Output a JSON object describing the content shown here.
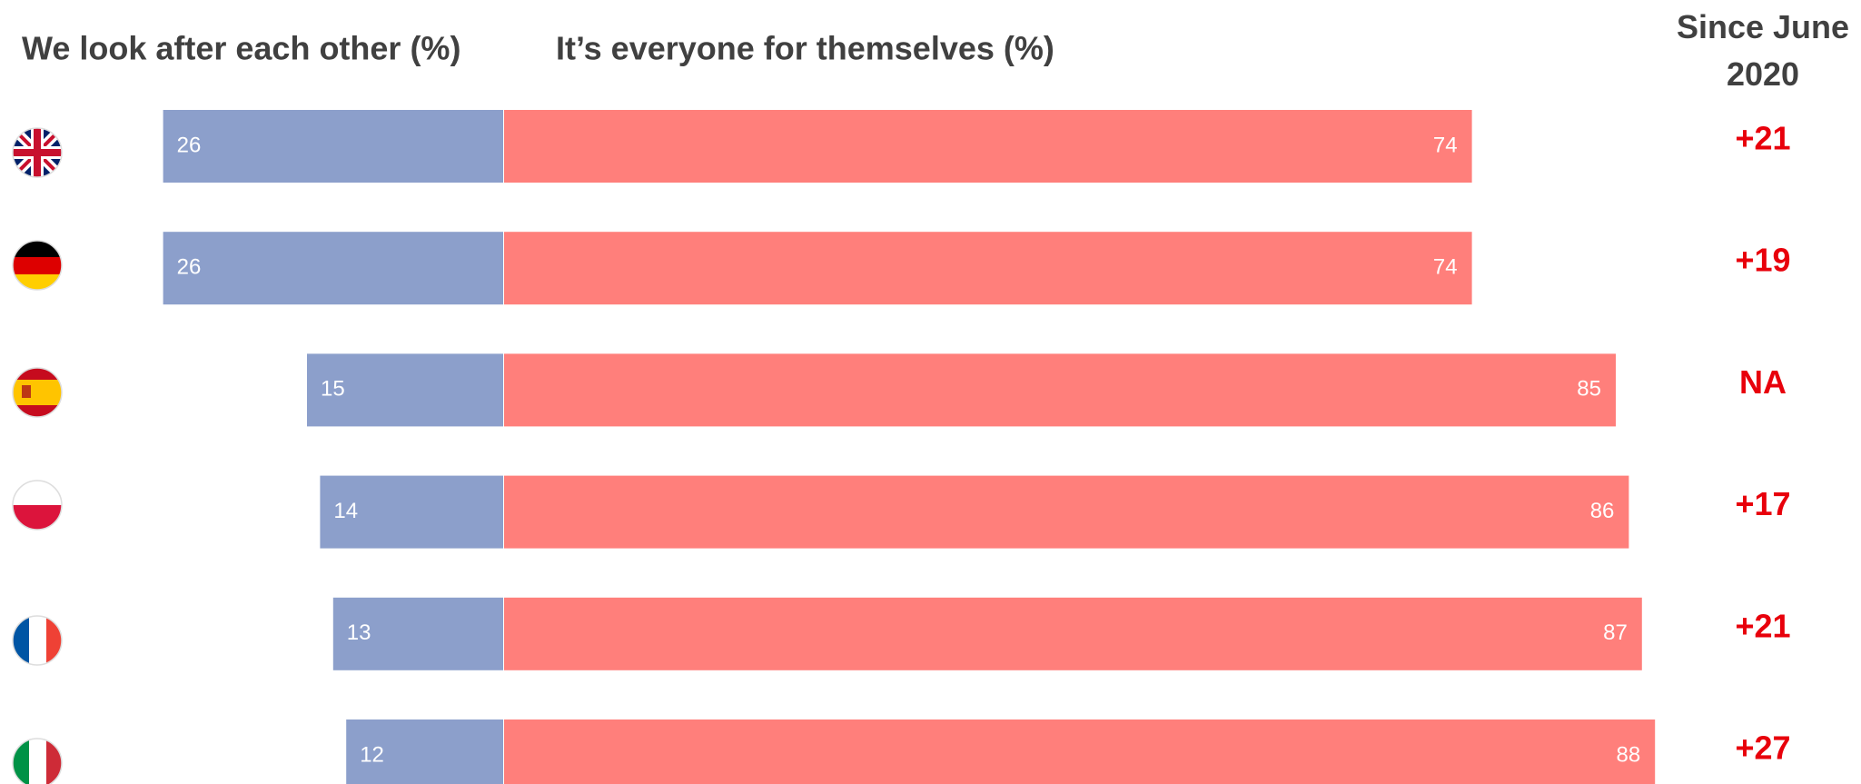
{
  "chart_data": {
    "type": "diverging_bar",
    "categories": [
      null,
      null,
      null,
      null,
      null,
      null
    ],
    "series": [
      {
        "name": "We look after each other (%)",
        "color": "#8c9fcb",
        "values": [
          26,
          26,
          15,
          14,
          13,
          12
        ]
      },
      {
        "name": "It’s everyone for themselves (%)",
        "color": "#ff7f7b",
        "values": [
          74,
          74,
          85,
          86,
          87,
          88
        ]
      }
    ],
    "change": {
      "title": "Since June 2020",
      "color": "#e8000b",
      "values": [
        21,
        19,
        null,
        17,
        21,
        27
      ],
      "value_labels": [
        "+21",
        "+19",
        "NA",
        "+17",
        "+21",
        "+27"
      ]
    }
  }
}
